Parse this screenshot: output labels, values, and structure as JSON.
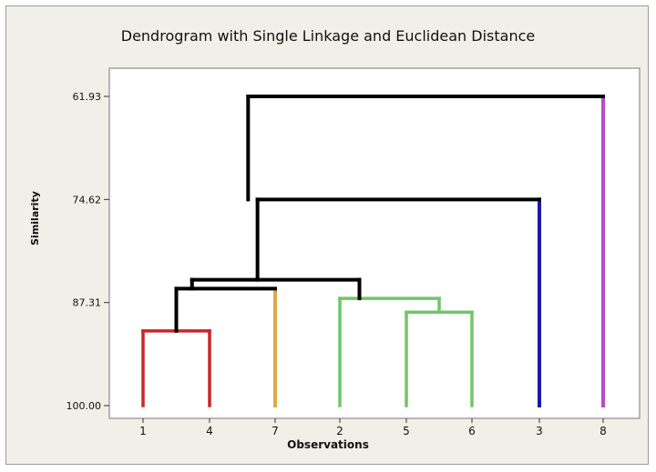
{
  "chart_data": {
    "type": "dendrogram",
    "title": "Dendrogram with Single Linkage and Euclidean Distance",
    "xlabel": "Observations",
    "ylabel": "Similarity",
    "ylim": [
      61.93,
      100.0
    ],
    "yticks": [
      "61.93",
      "74.62",
      "87.31",
      "100.00"
    ],
    "ytick_values": [
      61.93,
      74.62,
      87.31,
      100.0
    ],
    "leaf_order": [
      "1",
      "4",
      "7",
      "2",
      "5",
      "6",
      "3",
      "8"
    ],
    "merges": [
      {
        "left": "1",
        "right": "4",
        "similarity": 90.8,
        "color": "#c8262a"
      },
      {
        "left": "5",
        "right": "6",
        "similarity": 88.5,
        "color": "#72c56a"
      },
      {
        "left": "2",
        "right": "5-6",
        "similarity": 86.8,
        "color": "#72c56a"
      },
      {
        "left": "1-4",
        "right": "7",
        "similarity": 85.6,
        "color": "#000000"
      },
      {
        "left": "1-4-7",
        "right": "2-5-6",
        "similarity": 84.5,
        "color": "#000000"
      },
      {
        "left": "1-4-7-2-5-6",
        "right": "3",
        "similarity": 74.62,
        "color": "#000000"
      },
      {
        "left": "1-4-7-2-5-6-3",
        "right": "8",
        "similarity": 61.93,
        "color": "#000000"
      }
    ],
    "leaf_colors": {
      "1": "#c8262a",
      "4": "#c8262a",
      "7": "#e0a84a",
      "2": "#72c56a",
      "5": "#72c56a",
      "6": "#72c56a",
      "3": "#1a1aa8",
      "8": "#b84cc8"
    }
  }
}
